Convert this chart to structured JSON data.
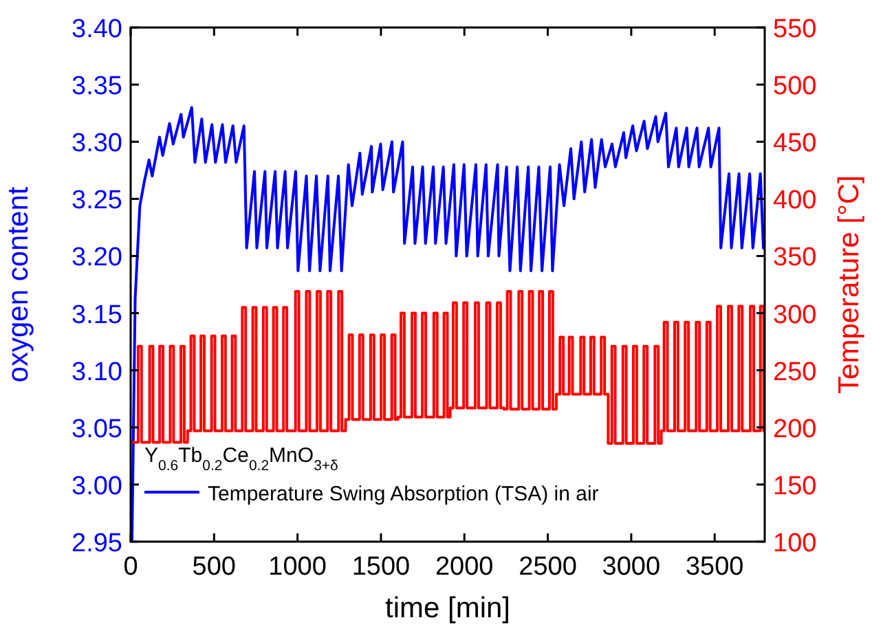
{
  "chart_data": {
    "type": "line",
    "xlabel": "time [min]",
    "ylabel": "oxygen content",
    "y2label": "Temperature [°C]",
    "legend_title": "Y$_{0.6}$Tb$_{0.2}$Ce$_{0.2}$MnO$_{3+δ}$",
    "legend": "bottom left",
    "xlim": [
      0,
      3800
    ],
    "xticks": [
      0,
      500,
      1000,
      1500,
      2000,
      2500,
      3000,
      3500
    ],
    "ylim": [
      2.95,
      3.4
    ],
    "yticks": [
      {
        "value": 2.95,
        "label": "2.95"
      },
      {
        "value": 3.0,
        "label": "3.00"
      },
      {
        "value": 3.05,
        "label": "3.05"
      },
      {
        "value": 3.1,
        "label": "3.10"
      },
      {
        "value": 3.15,
        "label": "3.15"
      },
      {
        "value": 3.2,
        "label": "3.20"
      },
      {
        "value": 3.25,
        "label": "3.25"
      },
      {
        "value": 3.3,
        "label": "3.30"
      },
      {
        "value": 3.35,
        "label": "3.35"
      },
      {
        "value": 3.4,
        "label": "3.40"
      }
    ],
    "y2lim": [
      100,
      550
    ],
    "y2ticks": [
      100,
      150,
      200,
      250,
      300,
      350,
      400,
      450,
      500,
      550
    ],
    "marker": "none",
    "line_style": "solid",
    "grid": false,
    "series": [
      {
        "name": "Temperature Swing Absorption (TSA) in air",
        "color": "#0000ff",
        "axis": "y",
        "x": [
          8,
          27,
          55,
          83,
          110,
          129,
          173,
          192,
          233,
          255,
          302,
          316,
          366,
          385,
          426,
          448,
          487,
          508,
          550,
          569,
          613,
          632,
          679,
          695,
          742,
          756,
          805,
          816,
          866,
          880,
          926,
          940,
          989,
          1003,
          1053,
          1072,
          1113,
          1135,
          1182,
          1195,
          1245,
          1264,
          1305,
          1327,
          1374,
          1388,
          1443,
          1448,
          1498,
          1511,
          1566,
          1575,
          1630,
          1641,
          1690,
          1704,
          1750,
          1767,
          1814,
          1827,
          1874,
          1890,
          1937,
          1951,
          1998,
          2014,
          2069,
          2080,
          2130,
          2143,
          2199,
          2207,
          2253,
          2273,
          2317,
          2336,
          2383,
          2399,
          2446,
          2465,
          2514,
          2528,
          2570,
          2597,
          2638,
          2657,
          2701,
          2721,
          2762,
          2784,
          2822,
          2844,
          2885,
          2905,
          2955,
          2968,
          3009,
          3031,
          3077,
          3097,
          3147,
          3160,
          3207,
          3223,
          3270,
          3284,
          3333,
          3345,
          3394,
          3407,
          3463,
          3477,
          3526,
          3537,
          3586,
          3600,
          3646,
          3663,
          3710,
          3729,
          3774,
          3792,
          3800
        ],
        "values": [
          2.95,
          3.163,
          3.244,
          3.266,
          3.284,
          3.27,
          3.304,
          3.288,
          3.316,
          3.298,
          3.324,
          3.304,
          3.33,
          3.282,
          3.32,
          3.282,
          3.315,
          3.282,
          3.315,
          3.282,
          3.314,
          3.282,
          3.314,
          3.207,
          3.274,
          3.207,
          3.274,
          3.207,
          3.274,
          3.207,
          3.274,
          3.207,
          3.274,
          3.187,
          3.27,
          3.187,
          3.27,
          3.187,
          3.27,
          3.187,
          3.27,
          3.187,
          3.28,
          3.244,
          3.29,
          3.254,
          3.296,
          3.256,
          3.298,
          3.258,
          3.3,
          3.256,
          3.3,
          3.211,
          3.278,
          3.211,
          3.278,
          3.211,
          3.278,
          3.211,
          3.278,
          3.211,
          3.28,
          3.2,
          3.28,
          3.2,
          3.28,
          3.2,
          3.28,
          3.2,
          3.28,
          3.2,
          3.278,
          3.187,
          3.278,
          3.187,
          3.278,
          3.187,
          3.278,
          3.187,
          3.278,
          3.187,
          3.28,
          3.244,
          3.294,
          3.25,
          3.3,
          3.256,
          3.302,
          3.26,
          3.302,
          3.278,
          3.298,
          3.278,
          3.308,
          3.286,
          3.314,
          3.292,
          3.318,
          3.294,
          3.322,
          3.3,
          3.325,
          3.278,
          3.312,
          3.278,
          3.312,
          3.278,
          3.312,
          3.278,
          3.312,
          3.278,
          3.312,
          3.207,
          3.272,
          3.207,
          3.272,
          3.207,
          3.272,
          3.207,
          3.272,
          3.207,
          3.23
        ]
      },
      {
        "color": "#ff0000",
        "axis": "y2",
        "x": [
          0,
          45,
          45,
          65,
          65,
          114,
          114,
          134,
          134,
          174,
          174,
          194,
          194,
          237,
          237,
          257,
          257,
          301,
          301,
          321,
          321,
          341,
          341,
          361,
          361,
          381,
          381,
          421,
          421,
          441,
          441,
          485,
          485,
          505,
          505,
          548,
          548,
          568,
          568,
          608,
          608,
          628,
          628,
          648,
          648,
          669,
          669,
          689,
          689,
          732,
          732,
          752,
          752,
          795,
          795,
          815,
          815,
          856,
          856,
          876,
          876,
          916,
          916,
          936,
          936,
          962,
          962,
          988,
          988,
          1008,
          1008,
          1053,
          1053,
          1073,
          1073,
          1117,
          1117,
          1137,
          1137,
          1180,
          1180,
          1200,
          1200,
          1246,
          1246,
          1266,
          1266,
          1288,
          1288,
          1309,
          1309,
          1329,
          1329,
          1372,
          1372,
          1392,
          1392,
          1438,
          1438,
          1458,
          1458,
          1501,
          1501,
          1521,
          1521,
          1565,
          1565,
          1585,
          1585,
          1602,
          1602,
          1620,
          1620,
          1640,
          1640,
          1686,
          1686,
          1706,
          1706,
          1748,
          1748,
          1768,
          1768,
          1817,
          1817,
          1837,
          1837,
          1878,
          1878,
          1898,
          1898,
          1915,
          1915,
          1933,
          1933,
          1953,
          1953,
          1996,
          1996,
          2016,
          2016,
          2065,
          2065,
          2085,
          2085,
          2133,
          2133,
          2153,
          2153,
          2197,
          2197,
          2217,
          2217,
          2237,
          2237,
          2257,
          2257,
          2277,
          2277,
          2326,
          2326,
          2346,
          2346,
          2389,
          2389,
          2409,
          2409,
          2449,
          2449,
          2469,
          2469,
          2510,
          2510,
          2530,
          2530,
          2551,
          2551,
          2573,
          2573,
          2593,
          2593,
          2628,
          2628,
          2648,
          2648,
          2697,
          2697,
          2717,
          2717,
          2757,
          2757,
          2777,
          2777,
          2820,
          2820,
          2840,
          2840,
          2862,
          2862,
          2884,
          2884,
          2904,
          2904,
          2950,
          2950,
          2970,
          2970,
          3013,
          3013,
          3033,
          3033,
          3076,
          3076,
          3096,
          3096,
          3142,
          3142,
          3162,
          3162,
          3180,
          3180,
          3197,
          3197,
          3217,
          3217,
          3260,
          3260,
          3280,
          3280,
          3323,
          3323,
          3343,
          3343,
          3389,
          3389,
          3409,
          3409,
          3453,
          3453,
          3473,
          3473,
          3495,
          3495,
          3516,
          3516,
          3536,
          3536,
          3582,
          3582,
          3602,
          3602,
          3645,
          3645,
          3665,
          3665,
          3714,
          3714,
          3734,
          3734,
          3774,
          3774,
          3794,
          3794,
          3800
        ],
        "values": [
          187,
          187,
          271,
          271,
          187,
          187,
          271,
          271,
          187,
          187,
          271,
          271,
          187,
          187,
          271,
          271,
          187,
          187,
          271,
          271,
          187,
          187,
          197,
          197,
          280,
          280,
          197,
          197,
          280,
          280,
          197,
          197,
          280,
          280,
          197,
          197,
          280,
          280,
          197,
          197,
          280,
          280,
          197,
          197,
          197,
          197,
          305,
          305,
          197,
          197,
          305,
          305,
          197,
          197,
          305,
          305,
          197,
          197,
          305,
          305,
          197,
          197,
          305,
          305,
          197,
          197,
          197,
          197,
          319,
          319,
          197,
          197,
          319,
          319,
          197,
          197,
          319,
          319,
          197,
          197,
          319,
          319,
          197,
          197,
          319,
          319,
          197,
          197,
          207,
          207,
          281,
          281,
          207,
          207,
          281,
          281,
          207,
          207,
          281,
          281,
          207,
          207,
          281,
          281,
          207,
          207,
          281,
          281,
          207,
          207,
          209,
          209,
          300,
          300,
          209,
          209,
          300,
          300,
          209,
          209,
          300,
          300,
          209,
          209,
          300,
          300,
          209,
          209,
          300,
          300,
          209,
          209,
          217,
          217,
          309,
          309,
          217,
          217,
          309,
          309,
          217,
          217,
          309,
          309,
          217,
          217,
          309,
          309,
          217,
          217,
          309,
          309,
          217,
          217,
          216,
          216,
          319,
          319,
          216,
          216,
          319,
          319,
          216,
          216,
          319,
          319,
          216,
          216,
          319,
          319,
          216,
          216,
          319,
          319,
          216,
          216,
          229,
          229,
          279,
          279,
          229,
          229,
          279,
          279,
          229,
          229,
          279,
          279,
          229,
          229,
          279,
          279,
          229,
          229,
          279,
          279,
          229,
          229,
          186,
          186,
          271,
          271,
          186,
          186,
          271,
          271,
          186,
          186,
          271,
          271,
          186,
          186,
          271,
          271,
          186,
          186,
          271,
          271,
          186,
          186,
          197,
          197,
          292,
          292,
          197,
          197,
          292,
          292,
          197,
          197,
          292,
          292,
          197,
          197,
          292,
          292,
          197,
          197,
          292,
          292,
          197,
          197,
          197,
          197,
          306,
          306,
          197,
          197,
          306,
          306,
          197,
          197,
          306,
          306,
          197,
          197,
          306,
          306,
          197,
          197,
          306,
          306,
          197,
          197
        ]
      }
    ]
  }
}
